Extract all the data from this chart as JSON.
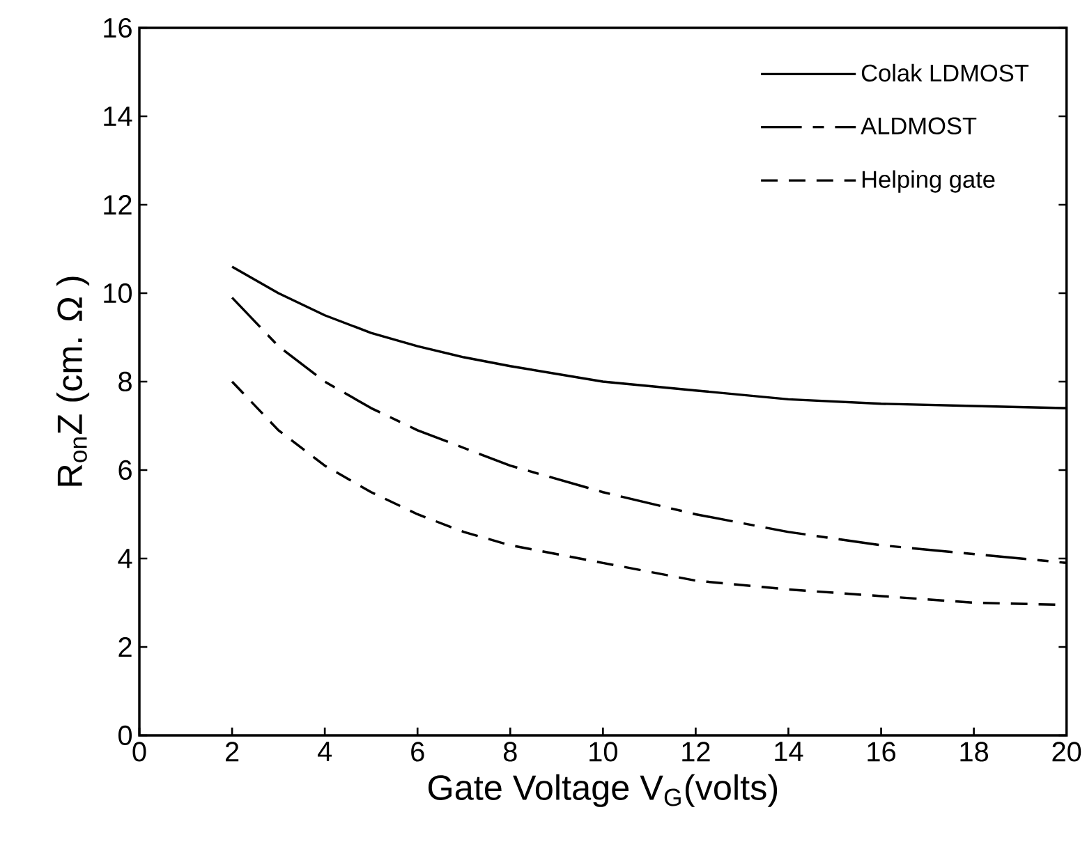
{
  "chart_data": {
    "type": "line",
    "xlabel": "Gate Voltage  V$_{G}$(volts)",
    "ylabel": "R$_{on}$Z   (cm. Ω )",
    "x": [
      2,
      3,
      4,
      5,
      6,
      7,
      8,
      10,
      12,
      14,
      16,
      18,
      20
    ],
    "series": [
      {
        "name": "Colak LDMOST",
        "color": "#000000",
        "line_style": "solid",
        "values": [
          10.6,
          10.0,
          9.5,
          9.1,
          8.8,
          8.55,
          8.35,
          8.0,
          7.8,
          7.6,
          7.5,
          7.45,
          7.4
        ]
      },
      {
        "name": "ALDMOST",
        "color": "#000000",
        "line_style": "dashdot",
        "values": [
          9.9,
          8.8,
          8.0,
          7.4,
          6.9,
          6.5,
          6.1,
          5.5,
          5.0,
          4.6,
          4.3,
          4.1,
          3.9
        ]
      },
      {
        "name": "Helping gate",
        "color": "#000000",
        "line_style": "dashed",
        "values": [
          8.0,
          6.9,
          6.1,
          5.5,
          5.0,
          4.6,
          4.3,
          3.9,
          3.5,
          3.3,
          3.15,
          3.0,
          2.95
        ]
      }
    ],
    "xlim": [
      0,
      20
    ],
    "ylim": [
      0,
      16
    ],
    "xticks": [
      0,
      2,
      4,
      6,
      8,
      10,
      12,
      14,
      16,
      18,
      20
    ],
    "yticks": [
      0,
      2,
      4,
      6,
      8,
      10,
      12,
      14,
      16
    ],
    "grid": false,
    "legend": "top right"
  }
}
